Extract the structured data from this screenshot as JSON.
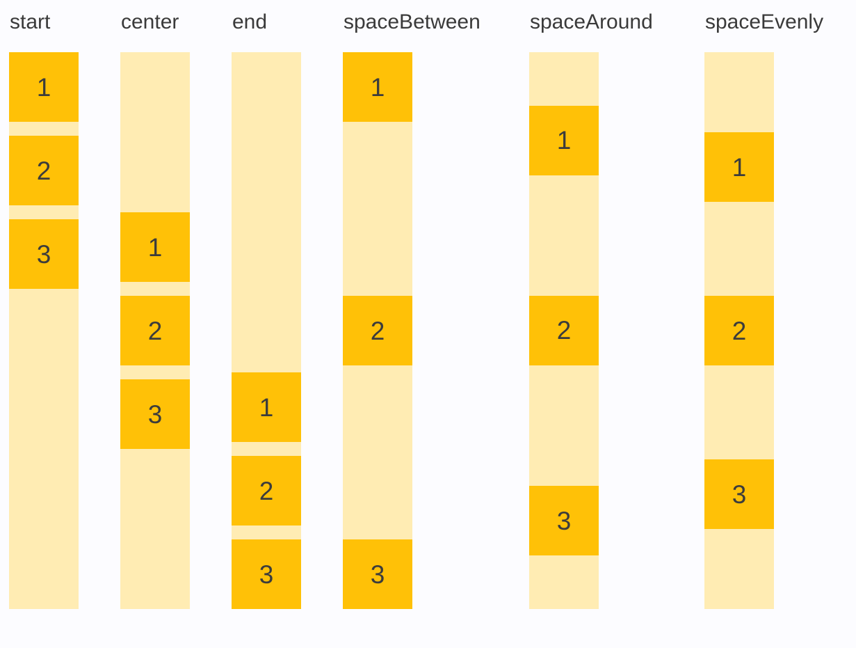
{
  "title_labels_note": "Flutter MainAxisAlignment demo figure",
  "colors": {
    "background": "#FCFCFF",
    "track": "#FFECB3",
    "box": "#FFC107",
    "text": "#3A3A3A"
  },
  "columns": [
    {
      "label": "start",
      "items": [
        "1",
        "2",
        "3"
      ]
    },
    {
      "label": "center",
      "items": [
        "1",
        "2",
        "3"
      ]
    },
    {
      "label": "end",
      "items": [
        "1",
        "2",
        "3"
      ]
    },
    {
      "label": "spaceBetween",
      "items": [
        "1",
        "2",
        "3"
      ]
    },
    {
      "label": "spaceAround",
      "items": [
        "1",
        "2",
        "3"
      ]
    },
    {
      "label": "spaceEvenly",
      "items": [
        "1",
        "2",
        "3"
      ]
    }
  ]
}
